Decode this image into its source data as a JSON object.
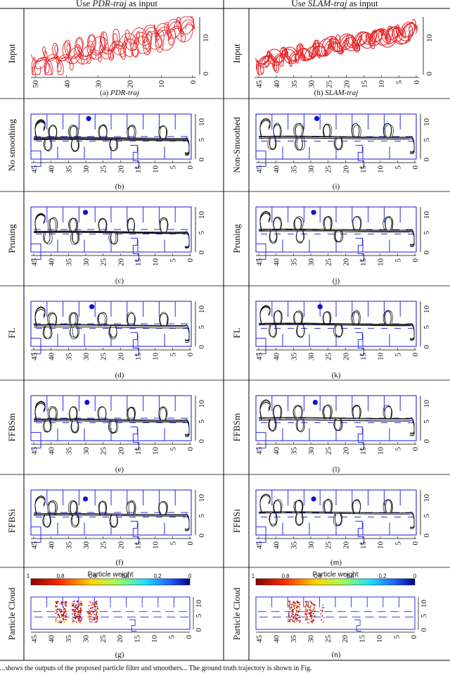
{
  "columns": {
    "left": {
      "prefix": "Use ",
      "emph": "PDR-traj",
      "suffix": " as input"
    },
    "right": {
      "prefix": "Use ",
      "emph": "SLAM-traj",
      "suffix": " as input"
    }
  },
  "row_labels": {
    "left": [
      "Input",
      "No smoothing",
      "Pruning",
      "FL",
      "FFBSm",
      "FFBSi",
      "Particle Cloud"
    ],
    "right": [
      "Input",
      "Non-Smoothed",
      "Pruning",
      "FL",
      "FFBSm",
      "FFBSi",
      "Particle Cloud"
    ]
  },
  "captions": {
    "left": [
      "(a) ",
      "(b)",
      "(c)",
      "(d)",
      "(e)",
      "(f)",
      "(g)"
    ],
    "left_emph": "PDR-traj",
    "right": [
      "(h) ",
      "(i)",
      "(j)",
      "(k)",
      "(l)",
      "(m)",
      "(n)"
    ],
    "right_emph": "SLAM-traj"
  },
  "colorbar": {
    "title": "Particle weight",
    "ticks": [
      "1",
      "0.8",
      "0.6",
      "0.4",
      "0.2",
      "0"
    ]
  },
  "axes": {
    "input_left_x": [
      "50",
      "40",
      "30",
      "20",
      "10",
      "0"
    ],
    "input_right_x": [
      "45",
      "40",
      "35",
      "30",
      "25",
      "20",
      "15",
      "10",
      "5",
      "0"
    ],
    "input_y": [
      "0",
      "10"
    ],
    "map_x": [
      "45",
      "40",
      "35",
      "30",
      "25",
      "20",
      "15",
      "10",
      "5",
      "0"
    ],
    "map_y": [
      "0",
      "5",
      "10"
    ],
    "cloud_x": [
      "45",
      "40",
      "35",
      "30",
      "25",
      "20",
      "15",
      "10",
      "5",
      "0"
    ],
    "cloud_y": [
      "0",
      "5",
      "10"
    ]
  },
  "footer_text": "...shows the outputs of the proposed particle filter and smoothers... The ground truth trajectory is shown in Fig."
}
